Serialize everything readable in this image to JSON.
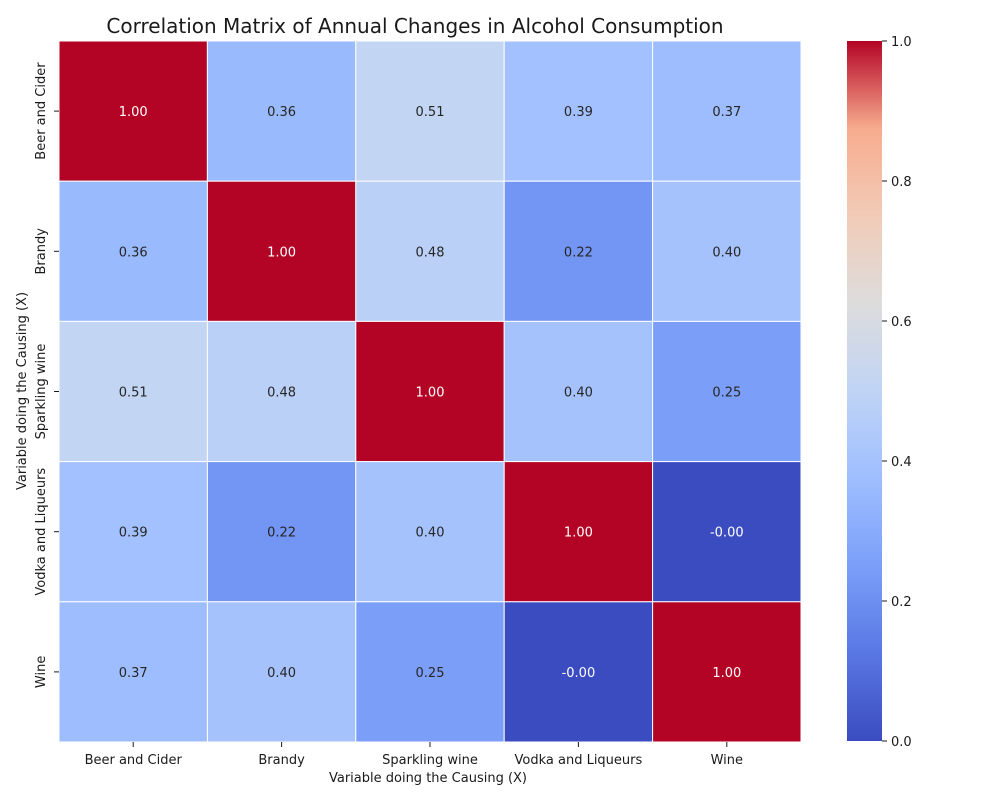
{
  "chart_data": {
    "type": "heatmap",
    "title": "Correlation Matrix of Annual Changes in Alcohol Consumption",
    "xlabel": "Variable doing the Causing (X)",
    "ylabel": "Variable doing the Causing (X)",
    "x_categories": [
      "Beer and Cider",
      "Brandy",
      "Sparkling wine",
      "Vodka and Liqueurs",
      "Wine"
    ],
    "y_categories": [
      "Beer and Cider",
      "Brandy",
      "Sparkling wine",
      "Vodka and Liqueurs",
      "Wine"
    ],
    "matrix": [
      [
        1.0,
        0.36,
        0.51,
        0.39,
        0.37
      ],
      [
        0.36,
        1.0,
        0.48,
        0.22,
        0.4
      ],
      [
        0.51,
        0.48,
        1.0,
        0.4,
        0.25
      ],
      [
        0.39,
        0.22,
        0.4,
        1.0,
        -0.0
      ],
      [
        0.37,
        0.4,
        0.25,
        -0.0,
        1.0
      ]
    ],
    "cell_labels": [
      [
        "1.00",
        "0.36",
        "0.51",
        "0.39",
        "0.37"
      ],
      [
        "0.36",
        "1.00",
        "0.48",
        "0.22",
        "0.40"
      ],
      [
        "0.51",
        "0.48",
        "1.00",
        "0.40",
        "0.25"
      ],
      [
        "0.39",
        "0.22",
        "0.40",
        "1.00",
        "-0.00"
      ],
      [
        "0.37",
        "0.40",
        "0.25",
        "-0.00",
        "1.00"
      ]
    ],
    "colormap": "coolwarm",
    "vmin": 0.0,
    "vmax": 1.0,
    "colorbar_ticks": [
      "0.0",
      "0.2",
      "0.4",
      "0.6",
      "0.8",
      "1.0"
    ],
    "grid": false,
    "colorbar_position": "right"
  }
}
